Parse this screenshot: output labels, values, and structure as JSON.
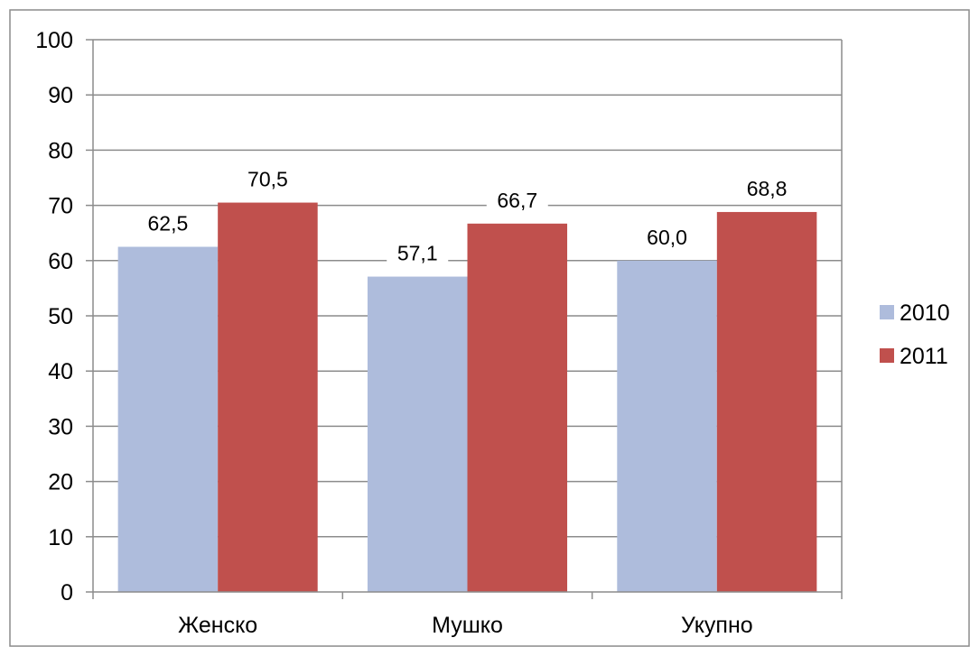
{
  "chart_data": {
    "type": "bar",
    "title": "",
    "xlabel": "",
    "ylabel": "",
    "categories": [
      "Женско",
      "Мушко",
      "Укупно"
    ],
    "series": [
      {
        "name": "2010",
        "color": "#aebcdc",
        "values": [
          62.5,
          57.1,
          60.0
        ],
        "labels": [
          "62,5",
          "57,1",
          "60,0"
        ]
      },
      {
        "name": "2011",
        "color": "#c0504d",
        "values": [
          70.5,
          66.7,
          68.8
        ],
        "labels": [
          "70,5",
          "66,7",
          "68,8"
        ]
      }
    ],
    "ylim": [
      0,
      100
    ],
    "yticks": [
      0,
      10,
      20,
      30,
      40,
      50,
      60,
      70,
      80,
      90,
      100
    ],
    "ytick_labels": [
      "0",
      "10",
      "20",
      "30",
      "40",
      "50",
      "60",
      "70",
      "80",
      "90",
      "100"
    ],
    "grid": true,
    "legend_position": "right",
    "data_labels": true
  }
}
